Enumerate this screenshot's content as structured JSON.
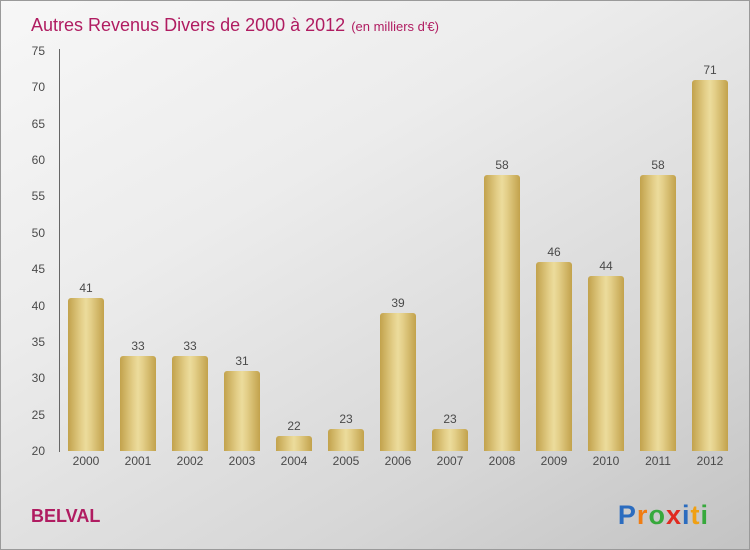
{
  "title": {
    "main": "Autres Revenus Divers de 2000 à 2012",
    "sub": "(en milliers d'€)"
  },
  "footer": {
    "brand": "BELVAL",
    "logo_letters": [
      {
        "ch": "P",
        "color": "#2b6cbf"
      },
      {
        "ch": "r",
        "color": "#f07d13"
      },
      {
        "ch": "o",
        "color": "#37a93c"
      },
      {
        "ch": "x",
        "color": "#e02a20"
      },
      {
        "ch": "i",
        "color": "#2b6cbf"
      },
      {
        "ch": "t",
        "color": "#f0a013"
      },
      {
        "ch": "i",
        "color": "#37a93c"
      }
    ]
  },
  "colors": {
    "accent": "#b01c61",
    "bar": "#d9c06a",
    "label": "#4a4a4a"
  },
  "chart_data": {
    "type": "bar",
    "title": "Autres Revenus Divers de 2000 à 2012",
    "subtitle": "(en milliers d'€)",
    "categories": [
      "2000",
      "2001",
      "2002",
      "2003",
      "2004",
      "2005",
      "2006",
      "2007",
      "2008",
      "2009",
      "2010",
      "2011",
      "2012"
    ],
    "values": [
      41,
      33,
      33,
      31,
      22,
      23,
      39,
      23,
      58,
      46,
      44,
      58,
      71
    ],
    "ylim": [
      20,
      75
    ],
    "yticks": [
      75,
      70,
      65,
      60,
      55,
      50,
      45,
      40,
      35,
      30,
      25,
      20
    ],
    "xlabel": "",
    "ylabel": "",
    "grid": false,
    "legend": false
  }
}
